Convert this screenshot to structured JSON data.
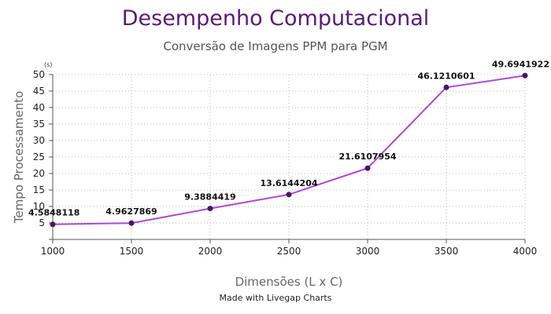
{
  "chart_data": {
    "type": "line",
    "title": "Desempenho Computacional",
    "subtitle": "Conversão de Imagens PPM para PGM",
    "xlabel": "Dimensões (L x C)",
    "ylabel": "Tempo Processamento",
    "y_unit": "(s)",
    "footer": "Made with Livegap Charts",
    "x": [
      1000,
      1500,
      2000,
      2500,
      3000,
      3500,
      4000
    ],
    "x_ticks": [
      "1000",
      "1500",
      "2000",
      "2500",
      "3000",
      "3500",
      "4000"
    ],
    "y_ticks": [
      "5",
      "10",
      "15",
      "20",
      "25",
      "30",
      "35",
      "40",
      "45",
      "50"
    ],
    "xlim": [
      1000,
      4000
    ],
    "ylim": [
      0,
      50
    ],
    "grid": true,
    "series": [
      {
        "values": [
          4.5848118,
          4.9627869,
          9.3884419,
          13.6144204,
          21.6107954,
          46.1210601,
          49.6941922
        ],
        "labels": [
          "4.5848118",
          "4.9627869",
          "9.3884419",
          "13.6144204",
          "21.6107954",
          "46.1210601",
          "49.6941922"
        ],
        "color": "#b145d8",
        "point_color": "#4a1560"
      }
    ]
  }
}
